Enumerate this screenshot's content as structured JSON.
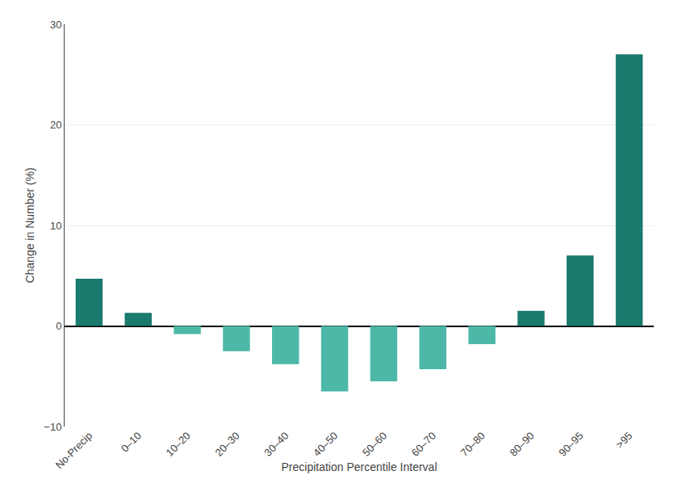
{
  "chart_data": {
    "type": "bar",
    "categories": [
      "No-Precip",
      "0–10",
      "10–20",
      "20–30",
      "30–40",
      "40–50",
      "50–60",
      "60–70",
      "70–80",
      "80–90",
      "90–95",
      ">95"
    ],
    "values": [
      4.7,
      1.3,
      -0.8,
      -2.5,
      -3.8,
      -6.5,
      -5.5,
      -4.3,
      -1.8,
      1.5,
      7.0,
      27.0
    ],
    "colors": [
      "#1a7a6e",
      "#1a7a6e",
      "#4db8a8",
      "#4db8a8",
      "#4db8a8",
      "#4db8a8",
      "#4db8a8",
      "#4db8a8",
      "#4db8a8",
      "#1a7a6e",
      "#1a7a6e",
      "#1a7a6e"
    ],
    "x_label": "Precipitation Percentile Interval",
    "y_label": "Change in Number (%)",
    "ylim": [
      -10,
      30
    ],
    "yticks": [
      {
        "value": -10,
        "label": "−10"
      },
      0,
      10,
      20,
      30
    ],
    "grid": true
  }
}
